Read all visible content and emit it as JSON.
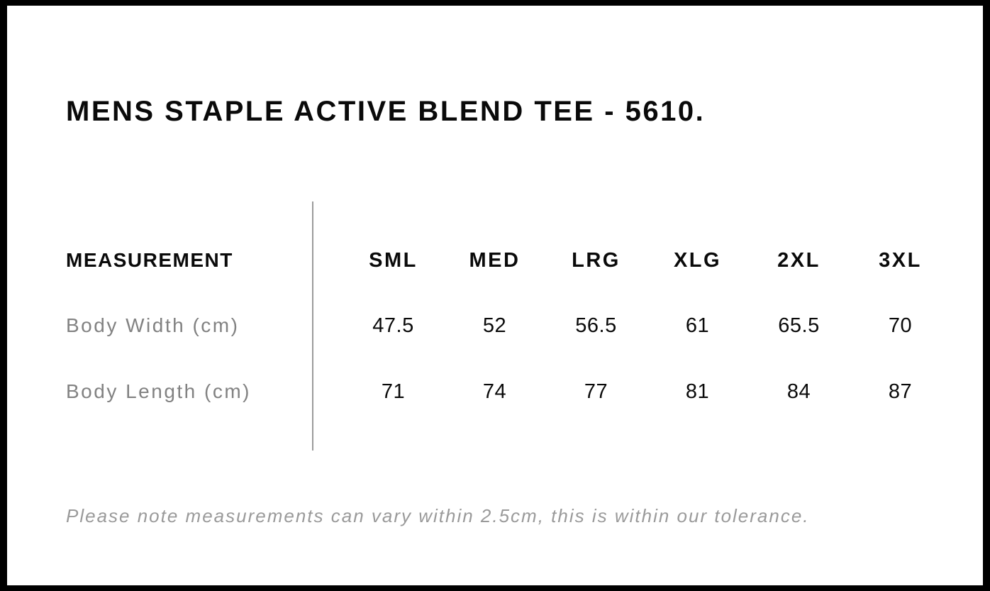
{
  "page": {
    "title": "MENS STAPLE ACTIVE BLEND TEE - 5610.",
    "note": "Please note measurements can vary within 2.5cm, this is within our tolerance."
  },
  "size_table": {
    "measurement_header": "MEASUREMENT",
    "size_headers": [
      "SML",
      "MED",
      "LRG",
      "XLG",
      "2XL",
      "3XL"
    ],
    "rows": [
      {
        "label": "Body Width (cm)",
        "values": [
          "47.5",
          "52",
          "56.5",
          "61",
          "65.5",
          "70"
        ]
      },
      {
        "label": "Body Length (cm)",
        "values": [
          "71",
          "74",
          "77",
          "81",
          "84",
          "87"
        ]
      }
    ]
  },
  "colors": {
    "text_primary": "#0a0a0a",
    "row_label_gray": "#828282",
    "note_gray": "#9a9a9a",
    "divider_gray": "#9b9b9b",
    "frame_border": "#000000",
    "background": "#ffffff"
  }
}
